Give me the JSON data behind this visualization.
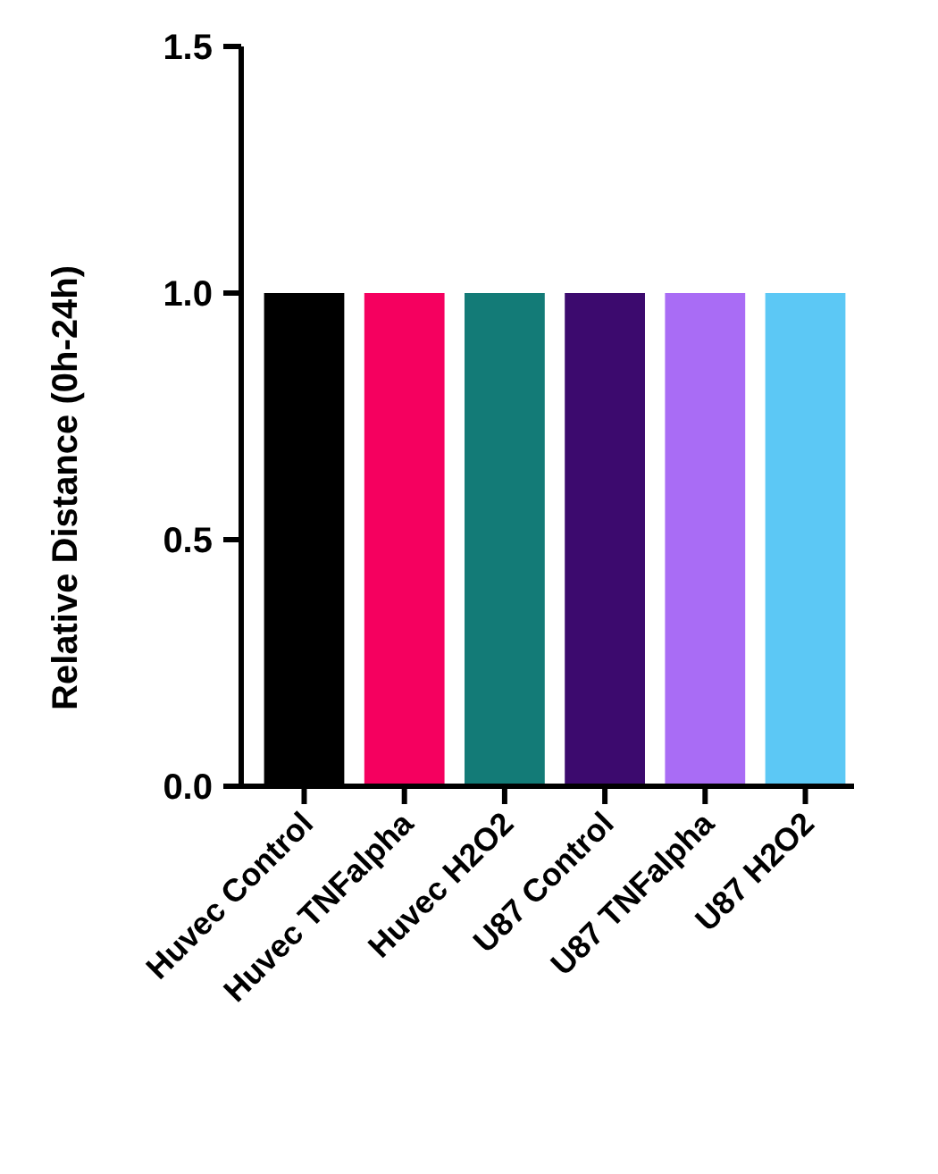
{
  "chart_data": {
    "type": "bar",
    "ylabel": "Relative Distance (0h-24h)",
    "categories": [
      "Huvec Control",
      "Huvec TNFalpha",
      "Huvec H2O2",
      "U87 Control",
      "U87 TNFalpha",
      "U87 H2O2"
    ],
    "values": [
      1,
      1,
      1,
      1,
      1,
      1
    ],
    "colors": [
      "#000000",
      "#f5005f",
      "#137b77",
      "#3c0a6e",
      "#a96cf5",
      "#5cc8f5"
    ],
    "ylim": [
      0,
      1.5
    ],
    "yticks": [
      {
        "value": 0,
        "label": "0.0"
      },
      {
        "value": 0.5,
        "label": "0.5"
      },
      {
        "value": 1,
        "label": "1.0"
      },
      {
        "value": 1.5,
        "label": "1.5"
      }
    ],
    "grid": false
  }
}
